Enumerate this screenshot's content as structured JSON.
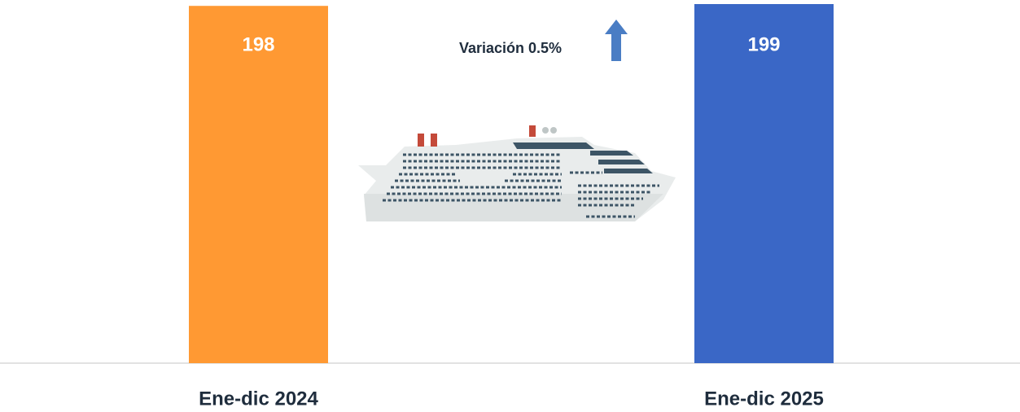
{
  "chart_data": {
    "type": "bar",
    "categories": [
      "Ene-dic 2024",
      "Ene-dic 2025"
    ],
    "values": [
      198,
      199
    ],
    "colors": [
      "#ff9933",
      "#3a67c6"
    ],
    "annotation": "Variación 0.5%"
  }
}
